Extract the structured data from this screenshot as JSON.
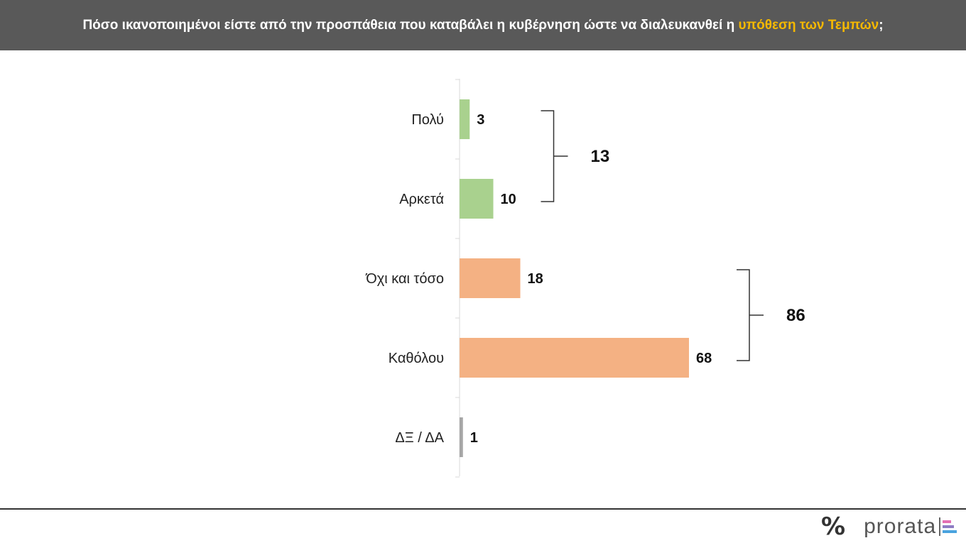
{
  "header": {
    "title_main": "Πόσο ικανοποιημένοι είστε από την προσπάθεια που καταβάλει η κυβέρνηση ώστε να διαλευκανθεί η ",
    "title_highlight": "υπόθεση των Τεμπών",
    "title_end": ";",
    "highlight_color": "#f5b800"
  },
  "chart_data": {
    "type": "bar",
    "orientation": "horizontal",
    "categories": [
      "Πολύ",
      "Αρκετά",
      "Όχι και τόσο",
      "Καθόλου",
      "ΔΞ / ΔΑ"
    ],
    "values": [
      3,
      10,
      18,
      68,
      1
    ],
    "colors": [
      "#a9d18e",
      "#a9d18e",
      "#f4b183",
      "#f4b183",
      "#a6a6a6"
    ],
    "groups": [
      {
        "members": [
          0,
          1
        ],
        "total": "13"
      },
      {
        "members": [
          2,
          3
        ],
        "total": "86"
      }
    ]
  },
  "footer": {
    "logo_symbol": "%",
    "logo_text": "prorata",
    "logo_bar_colors": [
      "#e46fb3",
      "#8e7cc3",
      "#4aa3df"
    ]
  }
}
